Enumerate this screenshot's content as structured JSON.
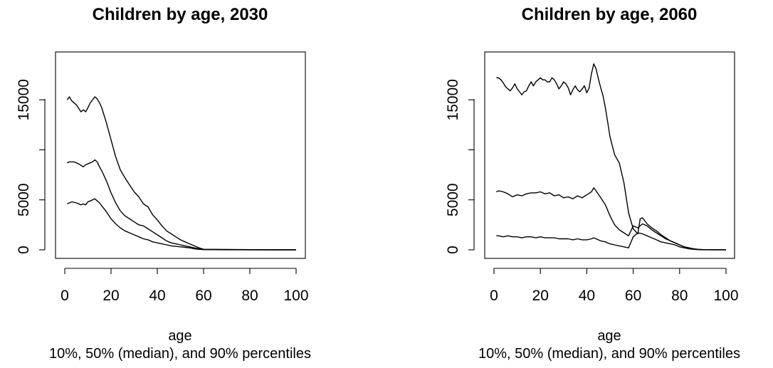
{
  "chart_data": [
    {
      "type": "line",
      "title": "Children by age, 2030",
      "xlabel": "age",
      "sublabel": "10%, 50% (median), and 90% percentiles",
      "xlim": [
        0,
        100
      ],
      "ylim": [
        0,
        20000
      ],
      "xticks": [
        0,
        20,
        40,
        60,
        80,
        100
      ],
      "yticks": [
        0,
        5000,
        10000,
        15000
      ],
      "ytick_labels": [
        "0",
        "5000",
        "",
        "15000"
      ],
      "series": [
        {
          "id": "p90",
          "x": [
            1,
            2,
            3,
            5,
            7,
            8,
            9,
            10,
            11,
            12,
            13,
            14,
            15,
            16,
            18,
            20,
            22,
            24,
            26,
            28,
            30,
            32,
            34,
            36,
            38,
            40,
            42,
            44,
            46,
            48,
            50,
            52,
            54,
            56,
            58,
            60,
            70,
            80,
            90,
            100
          ],
          "y": [
            15000,
            15300,
            14900,
            14500,
            13800,
            14000,
            13800,
            14200,
            14700,
            15000,
            15300,
            15100,
            14700,
            14200,
            12700,
            11000,
            9300,
            8000,
            7200,
            6500,
            5800,
            5300,
            4600,
            4300,
            3500,
            3000,
            2400,
            1900,
            1600,
            1300,
            1000,
            800,
            600,
            400,
            200,
            60,
            40,
            20,
            10,
            5
          ]
        },
        {
          "id": "p50",
          "x": [
            1,
            2,
            4,
            6,
            8,
            9,
            10,
            11,
            12,
            13,
            14,
            15,
            16,
            18,
            20,
            22,
            24,
            26,
            28,
            30,
            32,
            34,
            36,
            38,
            40,
            42,
            44,
            46,
            48,
            50,
            52,
            54,
            56,
            58,
            60,
            70,
            80,
            90,
            100
          ],
          "y": [
            8700,
            8800,
            8800,
            8600,
            8300,
            8500,
            8600,
            8700,
            8800,
            9000,
            8800,
            8300,
            7900,
            6900,
            5700,
            4700,
            3900,
            3400,
            3100,
            2800,
            2500,
            2400,
            2100,
            1800,
            1500,
            1200,
            900,
            700,
            600,
            500,
            400,
            300,
            200,
            100,
            40,
            20,
            10,
            5,
            5
          ]
        },
        {
          "id": "p10",
          "x": [
            1,
            2,
            3,
            5,
            7,
            8,
            9,
            10,
            11,
            12,
            13,
            14,
            15,
            16,
            18,
            20,
            22,
            24,
            26,
            28,
            30,
            32,
            34,
            36,
            38,
            40,
            42,
            44,
            46,
            48,
            50,
            52,
            54,
            56,
            58,
            60,
            70,
            80,
            90,
            100
          ],
          "y": [
            4600,
            4700,
            4800,
            4700,
            4500,
            4600,
            4500,
            4800,
            4900,
            5000,
            5100,
            4900,
            4700,
            4400,
            3800,
            3100,
            2600,
            2200,
            1900,
            1700,
            1500,
            1300,
            1100,
            1000,
            800,
            700,
            600,
            500,
            400,
            350,
            300,
            250,
            200,
            100,
            50,
            20,
            10,
            5,
            3,
            2
          ]
        }
      ]
    },
    {
      "type": "line",
      "title": "Children by age, 2060",
      "xlabel": "age",
      "sublabel": "10%, 50% (median), and 90% percentiles",
      "xlim": [
        0,
        100
      ],
      "ylim": [
        0,
        20000
      ],
      "xticks": [
        0,
        20,
        40,
        60,
        80,
        100
      ],
      "yticks": [
        0,
        5000,
        10000,
        15000
      ],
      "ytick_labels": [
        "0",
        "5000",
        "",
        "15000"
      ],
      "series": [
        {
          "id": "p90",
          "x": [
            1,
            2,
            3,
            4,
            5,
            6,
            7,
            8,
            9,
            10,
            11,
            12,
            13,
            14,
            15,
            16,
            17,
            18,
            19,
            20,
            21,
            22,
            23,
            24,
            25,
            26,
            27,
            28,
            29,
            30,
            31,
            32,
            33,
            34,
            35,
            36,
            37,
            38,
            39,
            40,
            41,
            42,
            43,
            44,
            45,
            46,
            47,
            48,
            49,
            50,
            52,
            54,
            56,
            58,
            60,
            62,
            63,
            64,
            66,
            68,
            70,
            72,
            74,
            76,
            78,
            80,
            82,
            84,
            86,
            88,
            90,
            95,
            100
          ],
          "y": [
            17200,
            17200,
            17000,
            16700,
            16300,
            16100,
            15900,
            16200,
            16600,
            16100,
            15800,
            15500,
            15800,
            15900,
            16400,
            16800,
            16400,
            16800,
            17000,
            17200,
            17000,
            17000,
            16800,
            16800,
            17200,
            17000,
            16600,
            16100,
            16400,
            16800,
            16600,
            16200,
            15500,
            16000,
            16400,
            16000,
            15800,
            16100,
            16400,
            15700,
            16200,
            17600,
            18600,
            18100,
            17100,
            16200,
            15400,
            14200,
            12800,
            11300,
            9500,
            8700,
            6700,
            3700,
            2100,
            1600,
            3100,
            3200,
            2600,
            2200,
            1900,
            1500,
            1200,
            900,
            700,
            500,
            300,
            200,
            100,
            50,
            20,
            10,
            5
          ]
        },
        {
          "id": "p50",
          "x": [
            1,
            2,
            4,
            6,
            8,
            10,
            12,
            14,
            16,
            18,
            20,
            22,
            24,
            26,
            28,
            30,
            32,
            34,
            36,
            38,
            40,
            42,
            43,
            44,
            46,
            48,
            50,
            52,
            54,
            56,
            58,
            60,
            62,
            64,
            66,
            68,
            70,
            72,
            74,
            76,
            78,
            80,
            82,
            84,
            86,
            88,
            90,
            95,
            100
          ],
          "y": [
            5800,
            5900,
            5800,
            5600,
            5300,
            5500,
            5400,
            5600,
            5700,
            5700,
            5800,
            5600,
            5700,
            5400,
            5500,
            5200,
            5300,
            5100,
            5400,
            5200,
            5500,
            5800,
            6200,
            5900,
            5200,
            4500,
            3400,
            2500,
            2000,
            1700,
            1400,
            2400,
            2200,
            2600,
            2400,
            2000,
            1700,
            1400,
            1100,
            900,
            700,
            500,
            300,
            200,
            100,
            50,
            20,
            10,
            5
          ]
        },
        {
          "id": "p10",
          "x": [
            1,
            2,
            4,
            6,
            8,
            10,
            12,
            14,
            16,
            18,
            20,
            22,
            24,
            26,
            28,
            30,
            32,
            34,
            36,
            38,
            40,
            42,
            43,
            44,
            46,
            48,
            50,
            52,
            54,
            56,
            58,
            60,
            62,
            64,
            66,
            68,
            70,
            72,
            74,
            76,
            78,
            80,
            82,
            84,
            86,
            88,
            90,
            95,
            100
          ],
          "y": [
            1400,
            1400,
            1300,
            1400,
            1300,
            1300,
            1200,
            1300,
            1300,
            1200,
            1300,
            1200,
            1200,
            1200,
            1100,
            1100,
            1100,
            1000,
            1100,
            1000,
            1000,
            1100,
            1200,
            1100,
            900,
            800,
            600,
            500,
            400,
            300,
            200,
            1300,
            1700,
            1600,
            1400,
            1200,
            1000,
            800,
            700,
            600,
            500,
            300,
            200,
            100,
            50,
            20,
            10,
            5,
            3
          ]
        }
      ]
    }
  ]
}
